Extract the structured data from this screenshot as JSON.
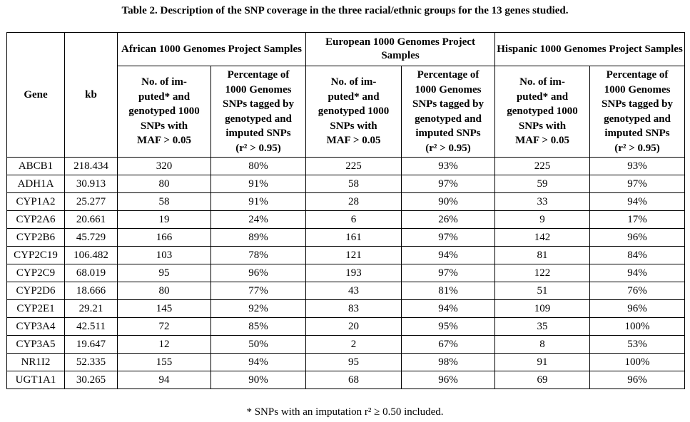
{
  "caption": "Table 2. Description of the SNP coverage in the three racial/ethnic groups for the 13 genes studied.",
  "headers": {
    "gene": "Gene",
    "kb": "kb",
    "groups": [
      "African 1000 Genomes Project Samples",
      "European 1000 Genomes Project Samples",
      "Hispanic 1000 Genomes Project Samples"
    ],
    "count_col": "No. of imputed* and genotyped 1000 SNPs with MAF > 0.05",
    "count_col_parts": [
      "No. of im-",
      "puted* and",
      "genotyped 1000",
      "SNPs with",
      "MAF > 0.05"
    ],
    "pct_col": "Percentage of 1000 Genomes SNPs tagged by genotyped and imputed SNPs (r² > 0.95)",
    "pct_col_parts": [
      "Percentage of",
      "1000 Genomes",
      "SNPs tagged by",
      "genotyped and",
      "imputed SNPs",
      "(r² > 0.95)"
    ]
  },
  "rows": [
    {
      "gene": "ABCB1",
      "kb": "218.434",
      "afr_n": "320",
      "afr_pct": "80%",
      "eur_n": "225",
      "eur_pct": "93%",
      "his_n": "225",
      "his_pct": "93%"
    },
    {
      "gene": "ADH1A",
      "kb": "30.913",
      "afr_n": "80",
      "afr_pct": "91%",
      "eur_n": "58",
      "eur_pct": "97%",
      "his_n": "59",
      "his_pct": "97%"
    },
    {
      "gene": "CYP1A2",
      "kb": "25.277",
      "afr_n": "58",
      "afr_pct": "91%",
      "eur_n": "28",
      "eur_pct": "90%",
      "his_n": "33",
      "his_pct": "94%"
    },
    {
      "gene": "CYP2A6",
      "kb": "20.661",
      "afr_n": "19",
      "afr_pct": "24%",
      "eur_n": "6",
      "eur_pct": "26%",
      "his_n": "9",
      "his_pct": "17%"
    },
    {
      "gene": "CYP2B6",
      "kb": "45.729",
      "afr_n": "166",
      "afr_pct": "89%",
      "eur_n": "161",
      "eur_pct": "97%",
      "his_n": "142",
      "his_pct": "96%"
    },
    {
      "gene": "CYP2C19",
      "kb": "106.482",
      "afr_n": "103",
      "afr_pct": "78%",
      "eur_n": "121",
      "eur_pct": "94%",
      "his_n": "81",
      "his_pct": "84%"
    },
    {
      "gene": "CYP2C9",
      "kb": "68.019",
      "afr_n": "95",
      "afr_pct": "96%",
      "eur_n": "193",
      "eur_pct": "97%",
      "his_n": "122",
      "his_pct": "94%"
    },
    {
      "gene": "CYP2D6",
      "kb": "18.666",
      "afr_n": "80",
      "afr_pct": "77%",
      "eur_n": "43",
      "eur_pct": "81%",
      "his_n": "51",
      "his_pct": "76%"
    },
    {
      "gene": "CYP2E1",
      "kb": "29.21",
      "afr_n": "145",
      "afr_pct": "92%",
      "eur_n": "83",
      "eur_pct": "94%",
      "his_n": "109",
      "his_pct": "96%"
    },
    {
      "gene": "CYP3A4",
      "kb": "42.511",
      "afr_n": "72",
      "afr_pct": "85%",
      "eur_n": "20",
      "eur_pct": "95%",
      "his_n": "35",
      "his_pct": "100%"
    },
    {
      "gene": "CYP3A5",
      "kb": "19.647",
      "afr_n": "12",
      "afr_pct": "50%",
      "eur_n": "2",
      "eur_pct": "67%",
      "his_n": "8",
      "his_pct": "53%"
    },
    {
      "gene": "NR1I2",
      "kb": "52.335",
      "afr_n": "155",
      "afr_pct": "94%",
      "eur_n": "95",
      "eur_pct": "98%",
      "his_n": "91",
      "his_pct": "100%"
    },
    {
      "gene": "UGT1A1",
      "kb": "30.265",
      "afr_n": "94",
      "afr_pct": "90%",
      "eur_n": "68",
      "eur_pct": "96%",
      "his_n": "69",
      "his_pct": "96%"
    }
  ],
  "footnote": "* SNPs with an imputation r² ≥ 0.50 included."
}
